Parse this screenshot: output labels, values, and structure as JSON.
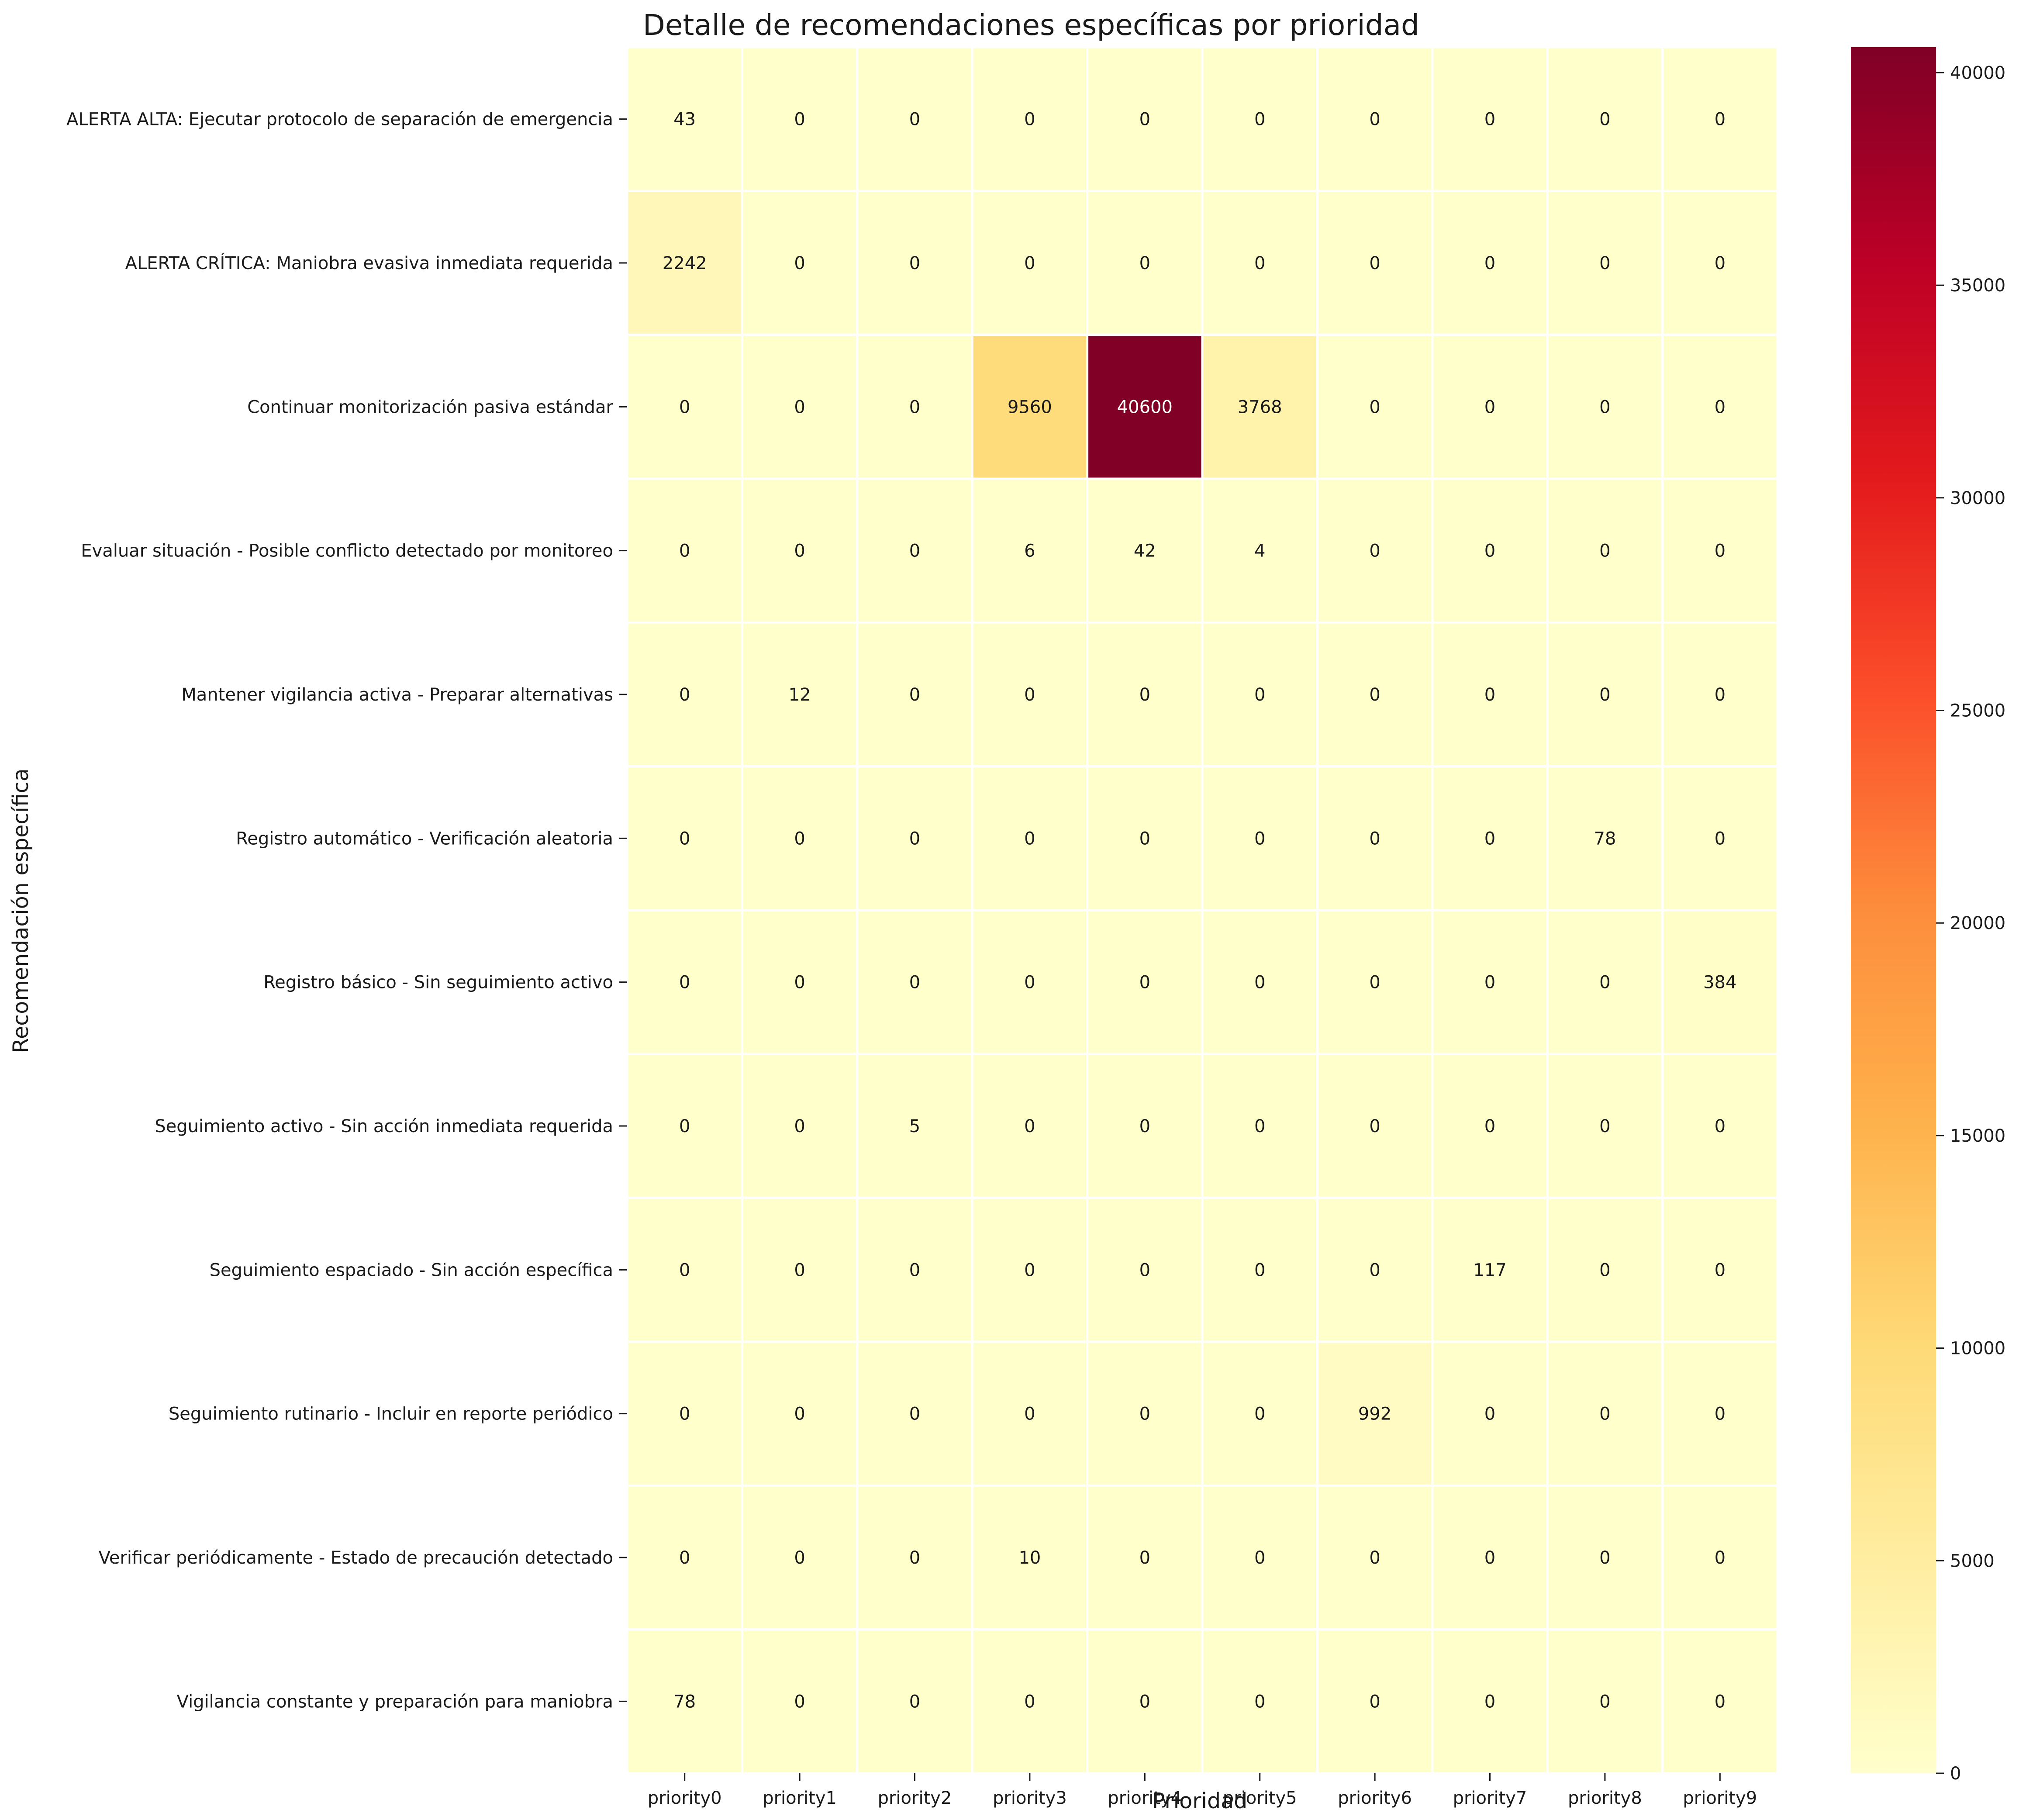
{
  "chart_data": {
    "type": "heatmap",
    "title": "Detalle de recomendaciones específicas por prioridad",
    "xlabel": "Prioridad",
    "ylabel": "Recomendación específica",
    "x_categories": [
      "priority0",
      "priority1",
      "priority2",
      "priority3",
      "priority4",
      "priority5",
      "priority6",
      "priority7",
      "priority8",
      "priority9"
    ],
    "y_categories": [
      "ALERTA ALTA: Ejecutar protocolo de separación de emergencia",
      "ALERTA CRÍTICA: Maniobra evasiva inmediata requerida",
      "Continuar monitorización pasiva estándar",
      "Evaluar situación - Posible conflicto detectado por monitoreo",
      "Mantener vigilancia activa - Preparar alternativas",
      "Registro automático - Verificación aleatoria",
      "Registro básico - Sin seguimiento activo",
      "Seguimiento activo - Sin acción inmediata requerida",
      "Seguimiento espaciado - Sin acción específica",
      "Seguimiento rutinario - Incluir en reporte periódico",
      "Verificar periódicamente - Estado de precaución detectado",
      "Vigilancia constante y preparación para maniobra"
    ],
    "values": [
      [
        43,
        0,
        0,
        0,
        0,
        0,
        0,
        0,
        0,
        0
      ],
      [
        2242,
        0,
        0,
        0,
        0,
        0,
        0,
        0,
        0,
        0
      ],
      [
        0,
        0,
        0,
        9560,
        40600,
        3768,
        0,
        0,
        0,
        0
      ],
      [
        0,
        0,
        0,
        6,
        42,
        4,
        0,
        0,
        0,
        0
      ],
      [
        0,
        12,
        0,
        0,
        0,
        0,
        0,
        0,
        0,
        0
      ],
      [
        0,
        0,
        0,
        0,
        0,
        0,
        0,
        0,
        78,
        0
      ],
      [
        0,
        0,
        0,
        0,
        0,
        0,
        0,
        0,
        0,
        384
      ],
      [
        0,
        0,
        5,
        0,
        0,
        0,
        0,
        0,
        0,
        0
      ],
      [
        0,
        0,
        0,
        0,
        0,
        0,
        0,
        117,
        0,
        0
      ],
      [
        0,
        0,
        0,
        0,
        0,
        0,
        992,
        0,
        0,
        0
      ],
      [
        0,
        0,
        0,
        10,
        0,
        0,
        0,
        0,
        0,
        0
      ],
      [
        78,
        0,
        0,
        0,
        0,
        0,
        0,
        0,
        0,
        0
      ]
    ],
    "colormap": "YlOrRd",
    "colorbar": {
      "range": [
        0,
        40600
      ],
      "ticks": [
        0,
        5000,
        10000,
        15000,
        20000,
        25000,
        30000,
        35000,
        40000
      ],
      "colors": [
        "#ffffcc",
        "#ffeda0",
        "#fed976",
        "#feb24c",
        "#fd8d3c",
        "#fc4e2a",
        "#e31a1c",
        "#bd0026",
        "#800026"
      ]
    },
    "annotations": "cell values printed in each cell",
    "grid": false,
    "cell_separator_color": "#ffffff",
    "legend": "colorbar right"
  }
}
